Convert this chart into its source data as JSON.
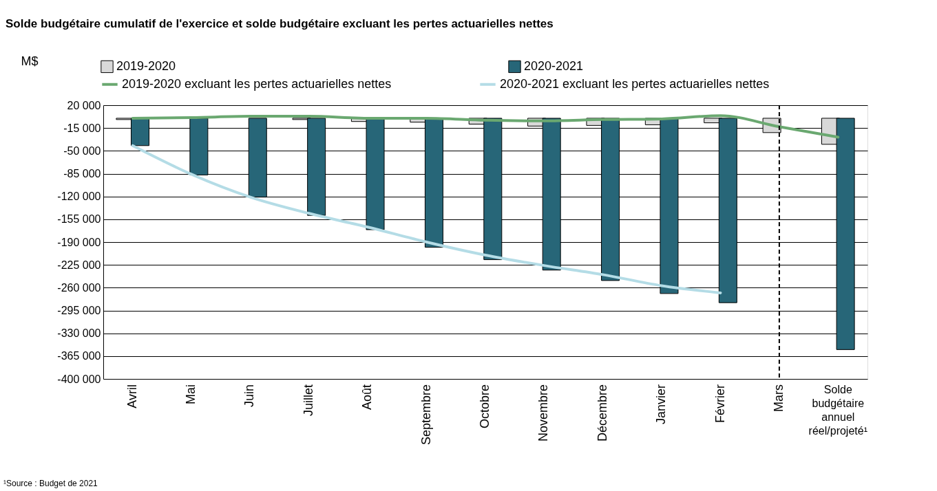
{
  "chart_data": {
    "type": "bar",
    "title": "Solde budgétaire cumulatif de l'exercice et solde budgétaire excluant les pertes actuarielles nettes",
    "ylabel": "M$",
    "categories": [
      "Avril",
      "Mai",
      "Juin",
      "Juillet",
      "Août",
      "Septembre",
      "Octobre",
      "Novembre",
      "Décembre",
      "Janvier",
      "Février",
      "Mars",
      "Solde budgétaire annuel réel/projeté¹"
    ],
    "series": [
      {
        "name": "2019-2020",
        "type": "bar",
        "color": "#d9d9d9",
        "values": [
          -2000,
          null,
          null,
          -2000,
          -5000,
          -6000,
          -9000,
          -12000,
          -11000,
          -10000,
          -7000,
          -22000,
          -40000
        ]
      },
      {
        "name": "2020-2021",
        "type": "bar",
        "color": "#276678",
        "values": [
          -42000,
          -87000,
          -121000,
          -149000,
          -171000,
          -198000,
          -217000,
          -233000,
          -249000,
          -269000,
          -283000,
          null,
          -355000
        ]
      },
      {
        "name": "2019-2020 excluant les pertes actuarielles nettes",
        "type": "line",
        "color": "#6aa870",
        "values": [
          0,
          1000,
          3000,
          3000,
          0,
          0,
          -3000,
          -4000,
          -2000,
          -1000,
          4000,
          -13000,
          -29000
        ]
      },
      {
        "name": "2020-2021 excluant les pertes actuarielles nettes",
        "type": "line",
        "color": "#b4dce6",
        "values": [
          -42000,
          -86000,
          -121000,
          -146000,
          -167000,
          -190000,
          -210000,
          -226000,
          -240000,
          -257000,
          -268000,
          null,
          null
        ]
      }
    ],
    "ylim": [
      -400000,
      20000
    ],
    "yticks": [
      {
        "value": 20000,
        "label": "20 000"
      },
      {
        "value": -15000,
        "label": "-15 000"
      },
      {
        "value": -50000,
        "label": "-50 000"
      },
      {
        "value": -85000,
        "label": "-85 000"
      },
      {
        "value": -120000,
        "label": "-120 000"
      },
      {
        "value": -155000,
        "label": "-155 000"
      },
      {
        "value": -190000,
        "label": "-190 000"
      },
      {
        "value": -225000,
        "label": "-225 000"
      },
      {
        "value": -260000,
        "label": "-260 000"
      },
      {
        "value": -295000,
        "label": "-295 000"
      },
      {
        "value": -330000,
        "label": "-330 000"
      },
      {
        "value": -365000,
        "label": "-365 000"
      },
      {
        "value": -400000,
        "label": "-400 000"
      }
    ],
    "grid": "y",
    "legend": "top",
    "ref_lines": [
      {
        "axis": "x",
        "value": "Mars",
        "color": "#000000",
        "line_style": "dashed"
      }
    ],
    "annotations": [
      "¹Source : Budget de 2021"
    ]
  }
}
